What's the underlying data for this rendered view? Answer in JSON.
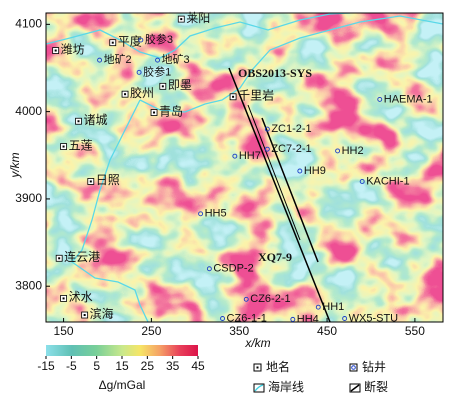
{
  "chart_data": {
    "type": "map",
    "x_label": "x/km",
    "y_label": "y/km",
    "xlim": [
      130,
      582
    ],
    "ylim": [
      3759,
      4113
    ],
    "xticks": [
      150,
      250,
      350,
      450,
      550
    ],
    "yticks": [
      3800,
      3900,
      4000,
      4100
    ],
    "places": {
      "labels": [
        "潍坊",
        "平度",
        "莱阳",
        "胶州",
        "即墨",
        "青岛",
        "千里岩",
        "诸城",
        "五莲",
        "日照",
        "连云港",
        "沭水",
        "滨海"
      ],
      "x": [
        141,
        206,
        284,
        220,
        263,
        253,
        343,
        167,
        150,
        181,
        145,
        150,
        174
      ],
      "y": [
        4070,
        4079,
        4106,
        4020,
        4029,
        3999,
        4017,
        3989,
        3960,
        3920,
        3832,
        3786,
        3767
      ]
    },
    "wells": {
      "labels": [
        "胶参3",
        "地矿2",
        "地矿3",
        "胶参1",
        "ZC1-2-1",
        "ZC7-2-1",
        "HH7",
        "HH2",
        "HH9",
        "KACHI-1",
        "HAEMA-1",
        "HH5",
        "CSDP-2",
        "CZ6-2-1",
        "CZ6-1-1",
        "HH4",
        "HH1",
        "WX5-STU"
      ],
      "x": [
        238,
        191,
        257,
        236,
        382,
        382,
        345,
        462,
        419,
        490,
        510,
        306,
        316,
        358,
        331,
        411,
        440,
        470
      ],
      "y": [
        4082,
        4059,
        4059,
        4045,
        3980,
        3957,
        3949,
        3955,
        3932,
        3920,
        4014,
        3883,
        3820,
        3785,
        3763,
        3762,
        3776,
        3763
      ]
    },
    "profiles": [
      "OBS2013-SYS",
      "XQ7-9"
    ],
    "colorbar": {
      "label": "Δg/mGal",
      "lim": [
        -15,
        45
      ],
      "ticks": [
        -15,
        -5,
        5,
        15,
        25,
        35,
        45
      ]
    },
    "legend": [
      "地名",
      "钻井",
      "海岸线",
      "断裂"
    ]
  }
}
